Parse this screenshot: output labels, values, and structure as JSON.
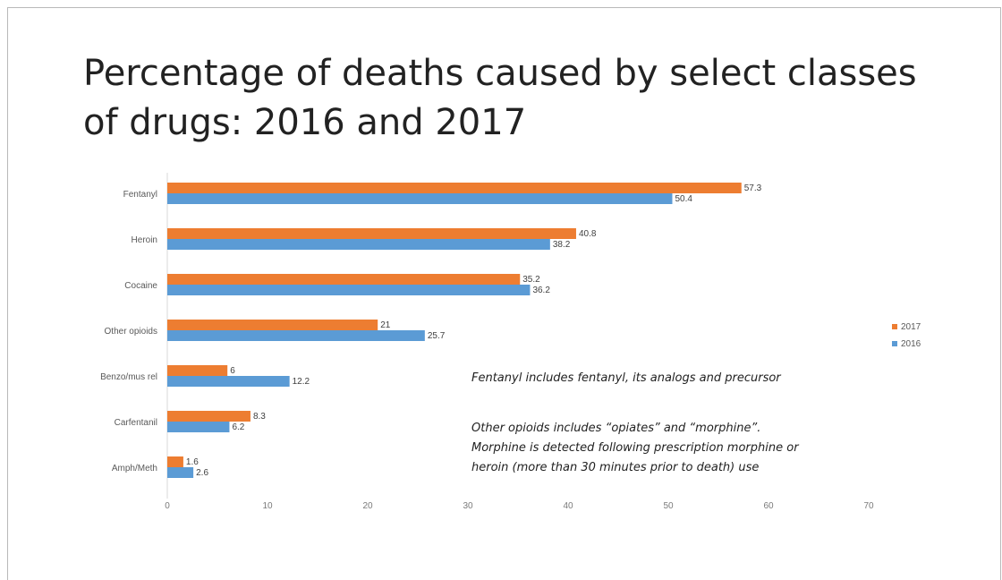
{
  "slide": {
    "title_line1": "Percentage of deaths caused by select classes",
    "title_line2": "of drugs: 2016 and 2017"
  },
  "notes": {
    "note1": "Fentanyl includes fentanyl,  its analogs and precursor",
    "note2_lines": [
      "Other opioids includes “opiates” and “morphine”.",
      "Morphine is detected following prescription morphine or",
      "heroin (more than 30 minutes prior to death) use"
    ]
  },
  "chart_data": {
    "type": "bar",
    "orientation": "horizontal",
    "title": "Percentage of deaths caused by select classes of drugs: 2016 and 2017",
    "categories": [
      "Fentanyl",
      "Heroin",
      "Cocaine",
      "Other opioids",
      "Benzo/mus rel",
      "Carfentanil",
      "Amph/Meth"
    ],
    "series": [
      {
        "name": "2017",
        "color": "#ed7d31",
        "values": [
          57.3,
          40.8,
          35.2,
          21,
          6,
          8.3,
          1.6
        ],
        "labels": [
          "57.3",
          "40.8",
          "35.2",
          "21",
          "6",
          "8.3",
          "1.6"
        ]
      },
      {
        "name": "2016",
        "color": "#5b9bd5",
        "values": [
          50.4,
          38.2,
          36.2,
          25.7,
          12.2,
          6.2,
          2.6
        ],
        "labels": [
          "50.4",
          "38.2",
          "36.2",
          "25.7",
          "12.2",
          "6.2",
          "2.6"
        ]
      }
    ],
    "xlim": [
      0,
      70
    ],
    "xticks": [
      "0",
      "10",
      "20",
      "30",
      "40",
      "50",
      "60",
      "70"
    ],
    "grid": false,
    "legend": "right"
  }
}
